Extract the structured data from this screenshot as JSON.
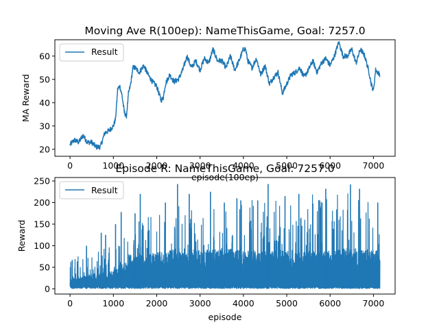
{
  "colors": {
    "series": "#1f77b4",
    "axes": "#000000",
    "legend_border": "#cccccc",
    "background": "#ffffff"
  },
  "chart_data": [
    {
      "type": "line",
      "title": "Moving Ave R(100ep): NameThisGame, Goal: 7257.0",
      "xlabel": "episode(100ep)",
      "ylabel": "MA Reward",
      "xlim": [
        -350,
        7500
      ],
      "ylim": [
        17,
        67
      ],
      "xticks": [
        0,
        1000,
        2000,
        3000,
        4000,
        5000,
        6000,
        7000
      ],
      "yticks": [
        20,
        30,
        40,
        50,
        60
      ],
      "legend": {
        "position": "top-left",
        "entries": [
          "Result"
        ]
      },
      "grid": false,
      "series": [
        {
          "name": "Result",
          "x": [
            0,
            100,
            200,
            300,
            400,
            500,
            600,
            700,
            800,
            900,
            1000,
            1050,
            1100,
            1150,
            1200,
            1250,
            1300,
            1350,
            1400,
            1450,
            1500,
            1600,
            1700,
            1800,
            1900,
            2000,
            2050,
            2100,
            2150,
            2200,
            2300,
            2400,
            2500,
            2600,
            2700,
            2800,
            2900,
            3000,
            3100,
            3200,
            3300,
            3400,
            3500,
            3600,
            3700,
            3800,
            3900,
            4000,
            4050,
            4100,
            4200,
            4300,
            4400,
            4500,
            4600,
            4700,
            4800,
            4900,
            5000,
            5100,
            5200,
            5300,
            5400,
            5500,
            5600,
            5700,
            5800,
            5900,
            6000,
            6100,
            6200,
            6300,
            6400,
            6500,
            6600,
            6700,
            6800,
            6900,
            6950,
            7000,
            7050,
            7150
          ],
          "values": [
            22,
            24,
            23,
            26,
            23,
            23,
            21,
            21,
            27,
            28,
            30,
            33,
            46,
            47,
            43,
            36,
            34,
            44,
            48,
            55,
            55,
            53,
            56,
            52,
            49,
            47,
            44,
            41,
            42,
            48,
            52,
            49,
            50,
            54,
            60,
            55,
            58,
            54,
            59,
            57,
            63,
            58,
            58,
            55,
            60,
            54,
            58,
            63,
            63,
            58,
            55,
            59,
            52,
            56,
            48,
            51,
            53,
            44,
            48,
            52,
            53,
            55,
            51,
            54,
            58,
            53,
            57,
            59,
            56,
            60,
            66,
            60,
            60,
            63,
            57,
            63,
            60,
            53,
            48,
            45,
            54,
            52
          ]
        }
      ]
    },
    {
      "type": "line",
      "title": "Episode R: NameThisGame, Goal: 7257.0",
      "xlabel": "episode",
      "ylabel": "Reward",
      "xlim": [
        -350,
        7500
      ],
      "ylim": [
        -12,
        258
      ],
      "xticks": [
        0,
        1000,
        2000,
        3000,
        4000,
        5000,
        6000,
        7000
      ],
      "yticks": [
        0,
        50,
        100,
        150,
        200,
        250
      ],
      "legend": {
        "position": "top-left",
        "entries": [
          "Result"
        ]
      },
      "grid": false,
      "series": [
        {
          "name": "Result",
          "x": [
            0,
            500,
            1000,
            1500,
            2000,
            2500,
            3000,
            3500,
            4000,
            4500,
            5000,
            5500,
            6000,
            6500,
            7150
          ],
          "upper_envelope": [
            65,
            95,
            100,
            155,
            180,
            200,
            175,
            200,
            205,
            215,
            200,
            220,
            215,
            225,
            195
          ],
          "dense_band_top": [
            25,
            35,
            45,
            75,
            85,
            95,
            90,
            95,
            90,
            90,
            90,
            90,
            90,
            95,
            90
          ],
          "lower_envelope": [
            0,
            0,
            0,
            0,
            0,
            0,
            0,
            0,
            0,
            0,
            0,
            0,
            0,
            0,
            0
          ],
          "peaks": [
            {
              "x": 2480,
              "y": 243
            },
            {
              "x": 4570,
              "y": 243
            },
            {
              "x": 6470,
              "y": 242
            },
            {
              "x": 5900,
              "y": 232
            },
            {
              "x": 6680,
              "y": 232
            },
            {
              "x": 3240,
              "y": 225
            },
            {
              "x": 2750,
              "y": 220
            },
            {
              "x": 1620,
              "y": 220
            },
            {
              "x": 5280,
              "y": 220
            },
            {
              "x": 4960,
              "y": 215
            },
            {
              "x": 3850,
              "y": 210
            },
            {
              "x": 3940,
              "y": 205
            },
            {
              "x": 4330,
              "y": 205
            },
            {
              "x": 5760,
              "y": 205
            },
            {
              "x": 7100,
              "y": 200
            },
            {
              "x": 3560,
              "y": 200
            },
            {
              "x": 2200,
              "y": 200
            },
            {
              "x": 1500,
              "y": 175
            },
            {
              "x": 1180,
              "y": 178
            },
            {
              "x": 1050,
              "y": 150
            },
            {
              "x": 720,
              "y": 130
            },
            {
              "x": 820,
              "y": 125
            },
            {
              "x": 380,
              "y": 100
            },
            {
              "x": 50,
              "y": 67
            }
          ]
        }
      ]
    }
  ]
}
